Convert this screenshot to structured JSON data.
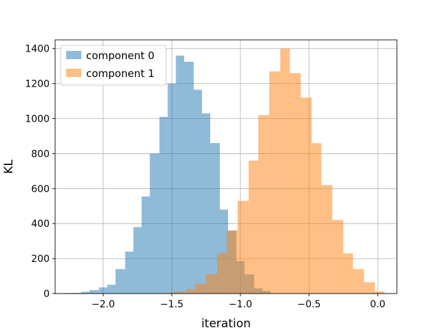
{
  "chart_data": {
    "type": "histogram",
    "title": "",
    "xlabel": "iteration",
    "ylabel": "KL",
    "xlim": [
      -2.35,
      0.14
    ],
    "ylim": [
      0,
      1450
    ],
    "xticks": [
      -2.0,
      -1.5,
      -1.0,
      -0.5,
      0.0
    ],
    "xtick_labels": [
      "−2.0",
      "−1.5",
      "−1.0",
      "−0.5",
      "0.0"
    ],
    "yticks": [
      0,
      200,
      400,
      600,
      800,
      1000,
      1200,
      1400
    ],
    "ytick_labels": [
      "0",
      "200",
      "400",
      "600",
      "800",
      "1000",
      "1200",
      "1400"
    ],
    "grid": true,
    "legend_position": "top-left",
    "series": [
      {
        "name": "component 0",
        "color": "#1f77b4",
        "alpha": 0.5,
        "bins": [
          [
            -2.28,
            -2.22,
            3
          ],
          [
            -2.22,
            -2.16,
            4
          ],
          [
            -2.16,
            -2.1,
            10
          ],
          [
            -2.1,
            -2.03,
            20
          ],
          [
            -2.03,
            -1.97,
            35
          ],
          [
            -1.97,
            -1.91,
            50
          ],
          [
            -1.91,
            -1.84,
            140
          ],
          [
            -1.84,
            -1.78,
            240
          ],
          [
            -1.78,
            -1.72,
            380
          ],
          [
            -1.72,
            -1.66,
            555
          ],
          [
            -1.66,
            -1.59,
            800
          ],
          [
            -1.59,
            -1.53,
            1010
          ],
          [
            -1.53,
            -1.47,
            1200
          ],
          [
            -1.47,
            -1.41,
            1360
          ],
          [
            -1.41,
            -1.34,
            1325
          ],
          [
            -1.34,
            -1.28,
            1165
          ],
          [
            -1.28,
            -1.22,
            1030
          ],
          [
            -1.22,
            -1.15,
            860
          ],
          [
            -1.15,
            -1.09,
            480
          ],
          [
            -1.09,
            -1.03,
            360
          ],
          [
            -1.03,
            -0.97,
            185
          ],
          [
            -0.97,
            -0.9,
            110
          ],
          [
            -0.9,
            -0.84,
            30
          ],
          [
            -0.84,
            -0.78,
            15
          ]
        ]
      },
      {
        "name": "component 1",
        "color": "#ff7f0e",
        "alpha": 0.5,
        "bins": [
          [
            -1.55,
            -1.48,
            5
          ],
          [
            -1.48,
            -1.4,
            10
          ],
          [
            -1.4,
            -1.33,
            25
          ],
          [
            -1.33,
            -1.25,
            55
          ],
          [
            -1.25,
            -1.17,
            110
          ],
          [
            -1.17,
            -1.1,
            230
          ],
          [
            -1.1,
            -1.02,
            360
          ],
          [
            -1.02,
            -0.94,
            530
          ],
          [
            -0.94,
            -0.87,
            760
          ],
          [
            -0.87,
            -0.79,
            1020
          ],
          [
            -0.79,
            -0.71,
            1270
          ],
          [
            -0.71,
            -0.64,
            1400
          ],
          [
            -0.64,
            -0.56,
            1260
          ],
          [
            -0.56,
            -0.48,
            1120
          ],
          [
            -0.48,
            -0.41,
            860
          ],
          [
            -0.41,
            -0.33,
            620
          ],
          [
            -0.33,
            -0.25,
            420
          ],
          [
            -0.25,
            -0.18,
            230
          ],
          [
            -0.18,
            -0.1,
            140
          ],
          [
            -0.1,
            -0.02,
            65
          ],
          [
            -0.02,
            0.05,
            12
          ]
        ]
      }
    ]
  }
}
